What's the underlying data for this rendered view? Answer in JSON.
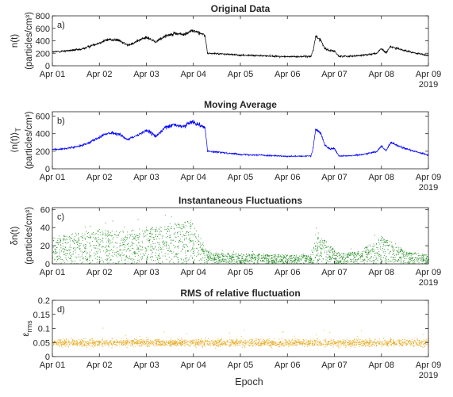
{
  "figure": {
    "xlabel": "Epoch",
    "year_label": "2019"
  },
  "chart_data": [
    {
      "type": "line",
      "panel_tag": "a)",
      "title": "Original Data",
      "ylabel": "n(t)",
      "ylabel_unit": "(particles/cm³)",
      "xlim": [
        "2019-04-01",
        "2019-04-09"
      ],
      "ylim": [
        0,
        800
      ],
      "yticks": [
        0,
        200,
        400,
        600,
        800
      ],
      "xtick_labels": [
        "Apr 01",
        "Apr 02",
        "Apr 03",
        "Apr 04",
        "Apr 05",
        "Apr 06",
        "Apr 07",
        "Apr 08",
        "Apr 09"
      ],
      "color": "#000000",
      "noise": 28,
      "spread": 0.06,
      "series": [
        {
          "x": [
            0,
            0.3,
            0.6,
            0.9,
            1.2,
            1.4,
            1.6,
            1.8,
            2.0,
            2.2,
            2.4,
            2.6,
            2.8,
            2.95,
            3.1,
            3.25,
            3.3,
            3.6,
            4.0,
            4.5,
            5.0,
            5.5,
            5.55,
            5.6,
            5.7,
            5.8,
            5.9,
            6.0,
            6.1,
            6.5,
            6.9,
            7.0,
            7.1,
            7.2,
            7.5,
            8.0
          ],
          "y": [
            220,
            240,
            260,
            340,
            420,
            410,
            330,
            390,
            460,
            380,
            480,
            520,
            500,
            560,
            540,
            480,
            200,
            190,
            170,
            160,
            145,
            150,
            250,
            470,
            420,
            280,
            240,
            240,
            150,
            160,
            200,
            270,
            210,
            310,
            240,
            160
          ]
        }
      ]
    },
    {
      "type": "line",
      "panel_tag": "b)",
      "title": "Moving Average",
      "ylabel": "⟨n(t)⟩",
      "ylabel_sub": "T",
      "ylabel_unit": "(particles/cm³)",
      "xlim": [
        "2019-04-01",
        "2019-04-09"
      ],
      "ylim": [
        0,
        650
      ],
      "yticks": [
        0,
        200,
        400,
        600
      ],
      "xtick_labels": [
        "Apr 01",
        "Apr 02",
        "Apr 03",
        "Apr 04",
        "Apr 05",
        "Apr 06",
        "Apr 07",
        "Apr 08",
        "Apr 09"
      ],
      "color": "#0000ff",
      "noise": 12,
      "spread": 0.05,
      "series": [
        {
          "x": [
            0,
            0.3,
            0.6,
            0.9,
            1.2,
            1.4,
            1.6,
            1.8,
            2.0,
            2.2,
            2.4,
            2.6,
            2.8,
            2.95,
            3.1,
            3.25,
            3.3,
            3.6,
            4.0,
            4.5,
            5.0,
            5.5,
            5.55,
            5.6,
            5.7,
            5.8,
            5.9,
            6.0,
            6.1,
            6.5,
            6.9,
            7.0,
            7.1,
            7.2,
            7.5,
            8.0
          ],
          "y": [
            220,
            230,
            260,
            330,
            410,
            400,
            330,
            380,
            440,
            370,
            470,
            500,
            480,
            540,
            510,
            470,
            200,
            185,
            165,
            155,
            140,
            145,
            240,
            450,
            410,
            270,
            230,
            230,
            145,
            155,
            195,
            260,
            205,
            300,
            230,
            155
          ]
        }
      ]
    },
    {
      "type": "scatter",
      "panel_tag": "c)",
      "title": "Instantaneous Fluctuations",
      "ylabel": "δn(t)",
      "ylabel_unit": "(particles/cm³)",
      "xlim": [
        "2019-04-01",
        "2019-04-09"
      ],
      "ylim": [
        0,
        62
      ],
      "yticks": [
        0,
        20,
        40,
        60
      ],
      "xtick_labels": [
        "Apr 01",
        "Apr 02",
        "Apr 03",
        "Apr 04",
        "Apr 05",
        "Apr 06",
        "Apr 07",
        "Apr 08",
        "Apr 09"
      ],
      "color": "#1f8a1f",
      "spread": 1,
      "series": [
        {
          "x": [
            0,
            0.5,
            1.0,
            1.5,
            2.0,
            2.5,
            2.95,
            3.3,
            3.6,
            4.5,
            5.5,
            5.6,
            5.8,
            6.1,
            6.5,
            7.0,
            7.3,
            7.5,
            8.0
          ],
          "y": [
            30,
            34,
            38,
            36,
            40,
            44,
            48,
            14,
            12,
            11,
            10,
            32,
            26,
            12,
            14,
            30,
            22,
            14,
            10
          ]
        }
      ]
    },
    {
      "type": "scatter",
      "panel_tag": "d)",
      "title": "RMS of relative fluctuation",
      "ylabel": "ε",
      "ylabel_sub": "rms",
      "xlim": [
        "2019-04-01",
        "2019-04-09"
      ],
      "ylim": [
        0,
        0.2
      ],
      "yticks": [
        0,
        0.05,
        0.1,
        0.15,
        0.2
      ],
      "xtick_labels": [
        "Apr 01",
        "Apr 02",
        "Apr 03",
        "Apr 04",
        "Apr 05",
        "Apr 06",
        "Apr 07",
        "Apr 08",
        "Apr 09"
      ],
      "color": "#e8a91d",
      "spread": 0.012,
      "series": [
        {
          "x": [
            0,
            1,
            2,
            3,
            4,
            5,
            6,
            7,
            8
          ],
          "y": [
            0.05,
            0.05,
            0.05,
            0.05,
            0.05,
            0.05,
            0.05,
            0.05,
            0.05
          ]
        }
      ]
    }
  ]
}
